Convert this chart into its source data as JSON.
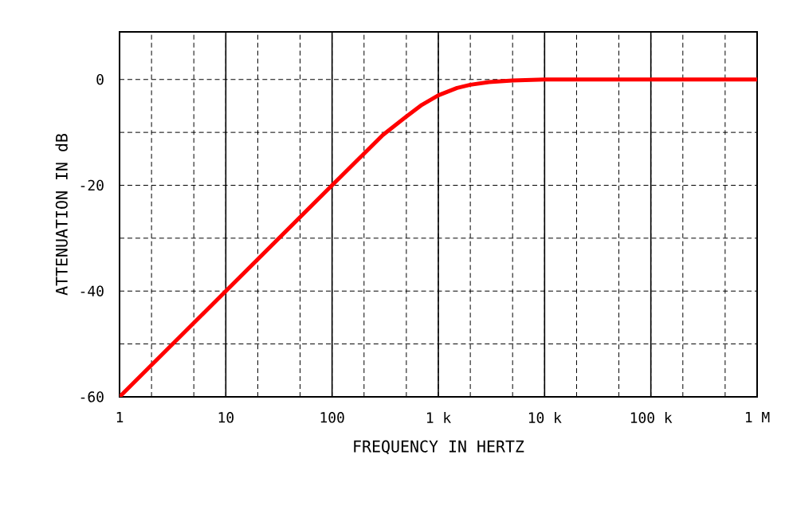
{
  "chart_data": {
    "type": "line",
    "xlabel": "FREQUENCY IN HERTZ",
    "ylabel": "ATTENUATION IN dB",
    "x": [
      1,
      10,
      100,
      200,
      300,
      500,
      700,
      1000,
      1500,
      2000,
      3000,
      5000,
      10000,
      100000,
      1000000
    ],
    "series": [
      {
        "color": "#ff0000",
        "values": [
          -60,
          -40,
          -20,
          -14,
          -10.5,
          -7,
          -4.8,
          -3,
          -1.6,
          -1,
          -0.5,
          -0.2,
          0,
          0,
          0
        ]
      }
    ],
    "log": "x",
    "xlim": [
      1,
      1000000
    ],
    "ylim": [
      -60,
      9
    ],
    "xticks": [
      {
        "value": 1,
        "label": "1"
      },
      {
        "value": 2,
        "label": null
      },
      {
        "value": 5,
        "label": null
      },
      {
        "value": 10,
        "label": "10"
      },
      {
        "value": 20,
        "label": null
      },
      {
        "value": 50,
        "label": null
      },
      {
        "value": 100,
        "label": "100"
      },
      {
        "value": 200,
        "label": null
      },
      {
        "value": 500,
        "label": null
      },
      {
        "value": 1000,
        "label": "1 k"
      },
      {
        "value": 2000,
        "label": null
      },
      {
        "value": 5000,
        "label": null
      },
      {
        "value": 10000,
        "label": "10 k"
      },
      {
        "value": 20000,
        "label": null
      },
      {
        "value": 50000,
        "label": null
      },
      {
        "value": 100000,
        "label": "100 k"
      },
      {
        "value": 200000,
        "label": null
      },
      {
        "value": 500000,
        "label": null
      },
      {
        "value": 1000000,
        "label": "1 M"
      }
    ],
    "yticks": [
      -60,
      {
        "value": -50,
        "label": null
      },
      -40,
      {
        "value": -30,
        "label": null
      },
      -20,
      {
        "value": -10,
        "label": null
      },
      0
    ],
    "grid": true,
    "marker": "none",
    "line_style": "solid"
  }
}
